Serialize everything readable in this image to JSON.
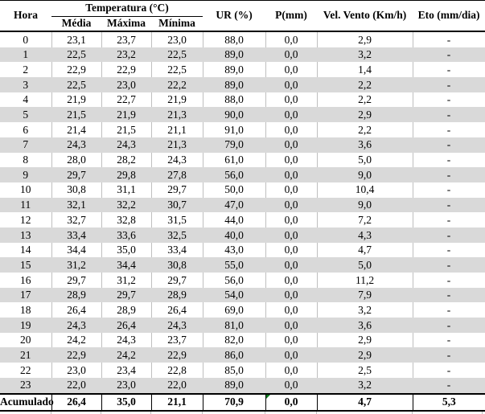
{
  "colors": {
    "stripe_gray": "#d9d9d9",
    "grid_light_gray": "#bfbfbf",
    "border_black": "#000000",
    "comment_marker_green": "#0a7a1e",
    "text": "#000000",
    "background": "#ffffff"
  },
  "chart_data": {
    "type": "table",
    "title": "",
    "header": {
      "col_hora": "Hora",
      "group_temperatura": "Temperatura (°C)",
      "subcols": [
        "Média",
        "Máxima",
        "Mínima"
      ],
      "col_ur": "UR (%)",
      "col_p": "P(mm)",
      "col_vento": "Vel. Vento (Km/h)",
      "col_eto": "Eto (mm/dia)"
    },
    "columns_flat": [
      "Hora",
      "Temperatura (°C) Média",
      "Temperatura (°C) Máxima",
      "Temperatura (°C) Mínima",
      "UR (%)",
      "P(mm)",
      "Vel. Vento (Km/h)",
      "Eto (mm/dia)"
    ],
    "rows": [
      [
        "0",
        "23,1",
        "23,7",
        "23,0",
        "88,0",
        "0,0",
        "2,9",
        "-"
      ],
      [
        "1",
        "22,5",
        "23,2",
        "22,5",
        "89,0",
        "0,0",
        "3,2",
        "-"
      ],
      [
        "2",
        "22,9",
        "22,9",
        "22,5",
        "89,0",
        "0,0",
        "1,4",
        "-"
      ],
      [
        "3",
        "22,5",
        "23,0",
        "22,2",
        "89,0",
        "0,0",
        "2,2",
        "-"
      ],
      [
        "4",
        "21,9",
        "22,7",
        "21,9",
        "88,0",
        "0,0",
        "2,2",
        "-"
      ],
      [
        "5",
        "21,5",
        "21,9",
        "21,3",
        "90,0",
        "0,0",
        "2,9",
        "-"
      ],
      [
        "6",
        "21,4",
        "21,5",
        "21,1",
        "91,0",
        "0,0",
        "2,2",
        "-"
      ],
      [
        "7",
        "24,3",
        "24,3",
        "21,3",
        "79,0",
        "0,0",
        "3,6",
        "-"
      ],
      [
        "8",
        "28,0",
        "28,2",
        "24,3",
        "61,0",
        "0,0",
        "5,0",
        "-"
      ],
      [
        "9",
        "29,7",
        "29,8",
        "27,8",
        "56,0",
        "0,0",
        "9,0",
        "-"
      ],
      [
        "10",
        "30,8",
        "31,1",
        "29,7",
        "50,0",
        "0,0",
        "10,4",
        "-"
      ],
      [
        "11",
        "32,1",
        "32,2",
        "30,7",
        "47,0",
        "0,0",
        "9,0",
        "-"
      ],
      [
        "12",
        "32,7",
        "32,8",
        "31,5",
        "44,0",
        "0,0",
        "7,2",
        "-"
      ],
      [
        "13",
        "33,4",
        "33,6",
        "32,5",
        "40,0",
        "0,0",
        "4,3",
        "-"
      ],
      [
        "14",
        "34,4",
        "35,0",
        "33,4",
        "43,0",
        "0,0",
        "4,7",
        "-"
      ],
      [
        "15",
        "31,2",
        "34,4",
        "30,8",
        "55,0",
        "0,0",
        "5,0",
        "-"
      ],
      [
        "16",
        "29,7",
        "31,2",
        "29,7",
        "56,0",
        "0,0",
        "11,2",
        "-"
      ],
      [
        "17",
        "28,9",
        "29,7",
        "28,9",
        "54,0",
        "0,0",
        "7,9",
        "-"
      ],
      [
        "18",
        "26,4",
        "28,9",
        "26,4",
        "69,0",
        "0,0",
        "3,2",
        "-"
      ],
      [
        "19",
        "24,3",
        "26,4",
        "24,3",
        "81,0",
        "0,0",
        "3,6",
        "-"
      ],
      [
        "20",
        "24,2",
        "24,3",
        "23,7",
        "82,0",
        "0,0",
        "2,9",
        "-"
      ],
      [
        "21",
        "22,9",
        "24,2",
        "22,9",
        "86,0",
        "0,0",
        "2,9",
        "-"
      ],
      [
        "22",
        "23,0",
        "23,4",
        "22,8",
        "85,0",
        "0,0",
        "2,5",
        "-"
      ],
      [
        "23",
        "22,0",
        "23,0",
        "22,0",
        "89,0",
        "0,0",
        "3,2",
        "-"
      ]
    ],
    "footer_row": [
      "Acumulado",
      "26,4",
      "35,0",
      "21,1",
      "70,9",
      "0,0",
      "4,7",
      "5,3"
    ],
    "footer_marker": {
      "icon": "comment-triangle",
      "cell_column": "P(mm)",
      "color": "#0a7a1e"
    },
    "layout_hints": {
      "striped_rows": "odd hours gray",
      "grid": "light vertical dividers on white rows only",
      "footer_dividers": "black"
    }
  }
}
